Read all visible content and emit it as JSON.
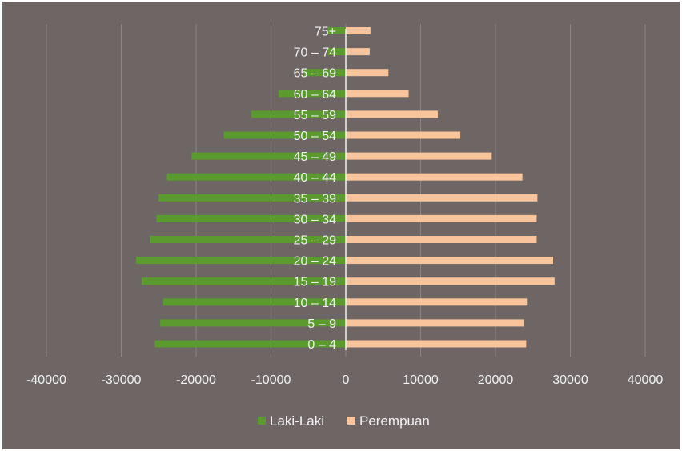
{
  "chart_data": {
    "type": "bar",
    "orientation": "horizontal",
    "layout": "population-pyramid",
    "categories": [
      "0 – 4",
      "5 – 9",
      "10 – 14",
      "15 – 19",
      "20 – 24",
      "25 – 29",
      "30 – 34",
      "35 – 39",
      "40 – 44",
      "45 – 49",
      "50 – 54",
      "55 – 59",
      "60 – 64",
      "65 – 69",
      "70 – 74",
      "75+"
    ],
    "series": [
      {
        "name": "Laki-Laki",
        "color": "#5a9a2e",
        "values": [
          -25500,
          -24800,
          -24400,
          -27300,
          -28000,
          -26200,
          -25300,
          -25000,
          -23900,
          -20600,
          -16300,
          -12600,
          -9000,
          -5600,
          -2400,
          -2400
        ]
      },
      {
        "name": "Perempuan",
        "color": "#f8c49b",
        "values": [
          24100,
          23800,
          24200,
          27900,
          27700,
          25500,
          25500,
          25600,
          23600,
          19500,
          15300,
          12300,
          8400,
          5700,
          3200,
          3300
        ]
      }
    ],
    "xlim": [
      -40000,
      40000
    ],
    "x_ticks": [
      -40000,
      -30000,
      -20000,
      -10000,
      0,
      10000,
      20000,
      30000,
      40000
    ],
    "x_tick_labels": [
      "-40000",
      "-30000",
      "-20000",
      "-10000",
      "0",
      "10000",
      "20000",
      "30000",
      "40000"
    ],
    "gridlines": "vertical",
    "legend": {
      "position": "bottom",
      "items": [
        "Laki-Laki",
        "Perempuan"
      ]
    },
    "background_color": "#6e6665",
    "grid_color": "#8c8584",
    "title": "",
    "xlabel": "",
    "ylabel": ""
  }
}
